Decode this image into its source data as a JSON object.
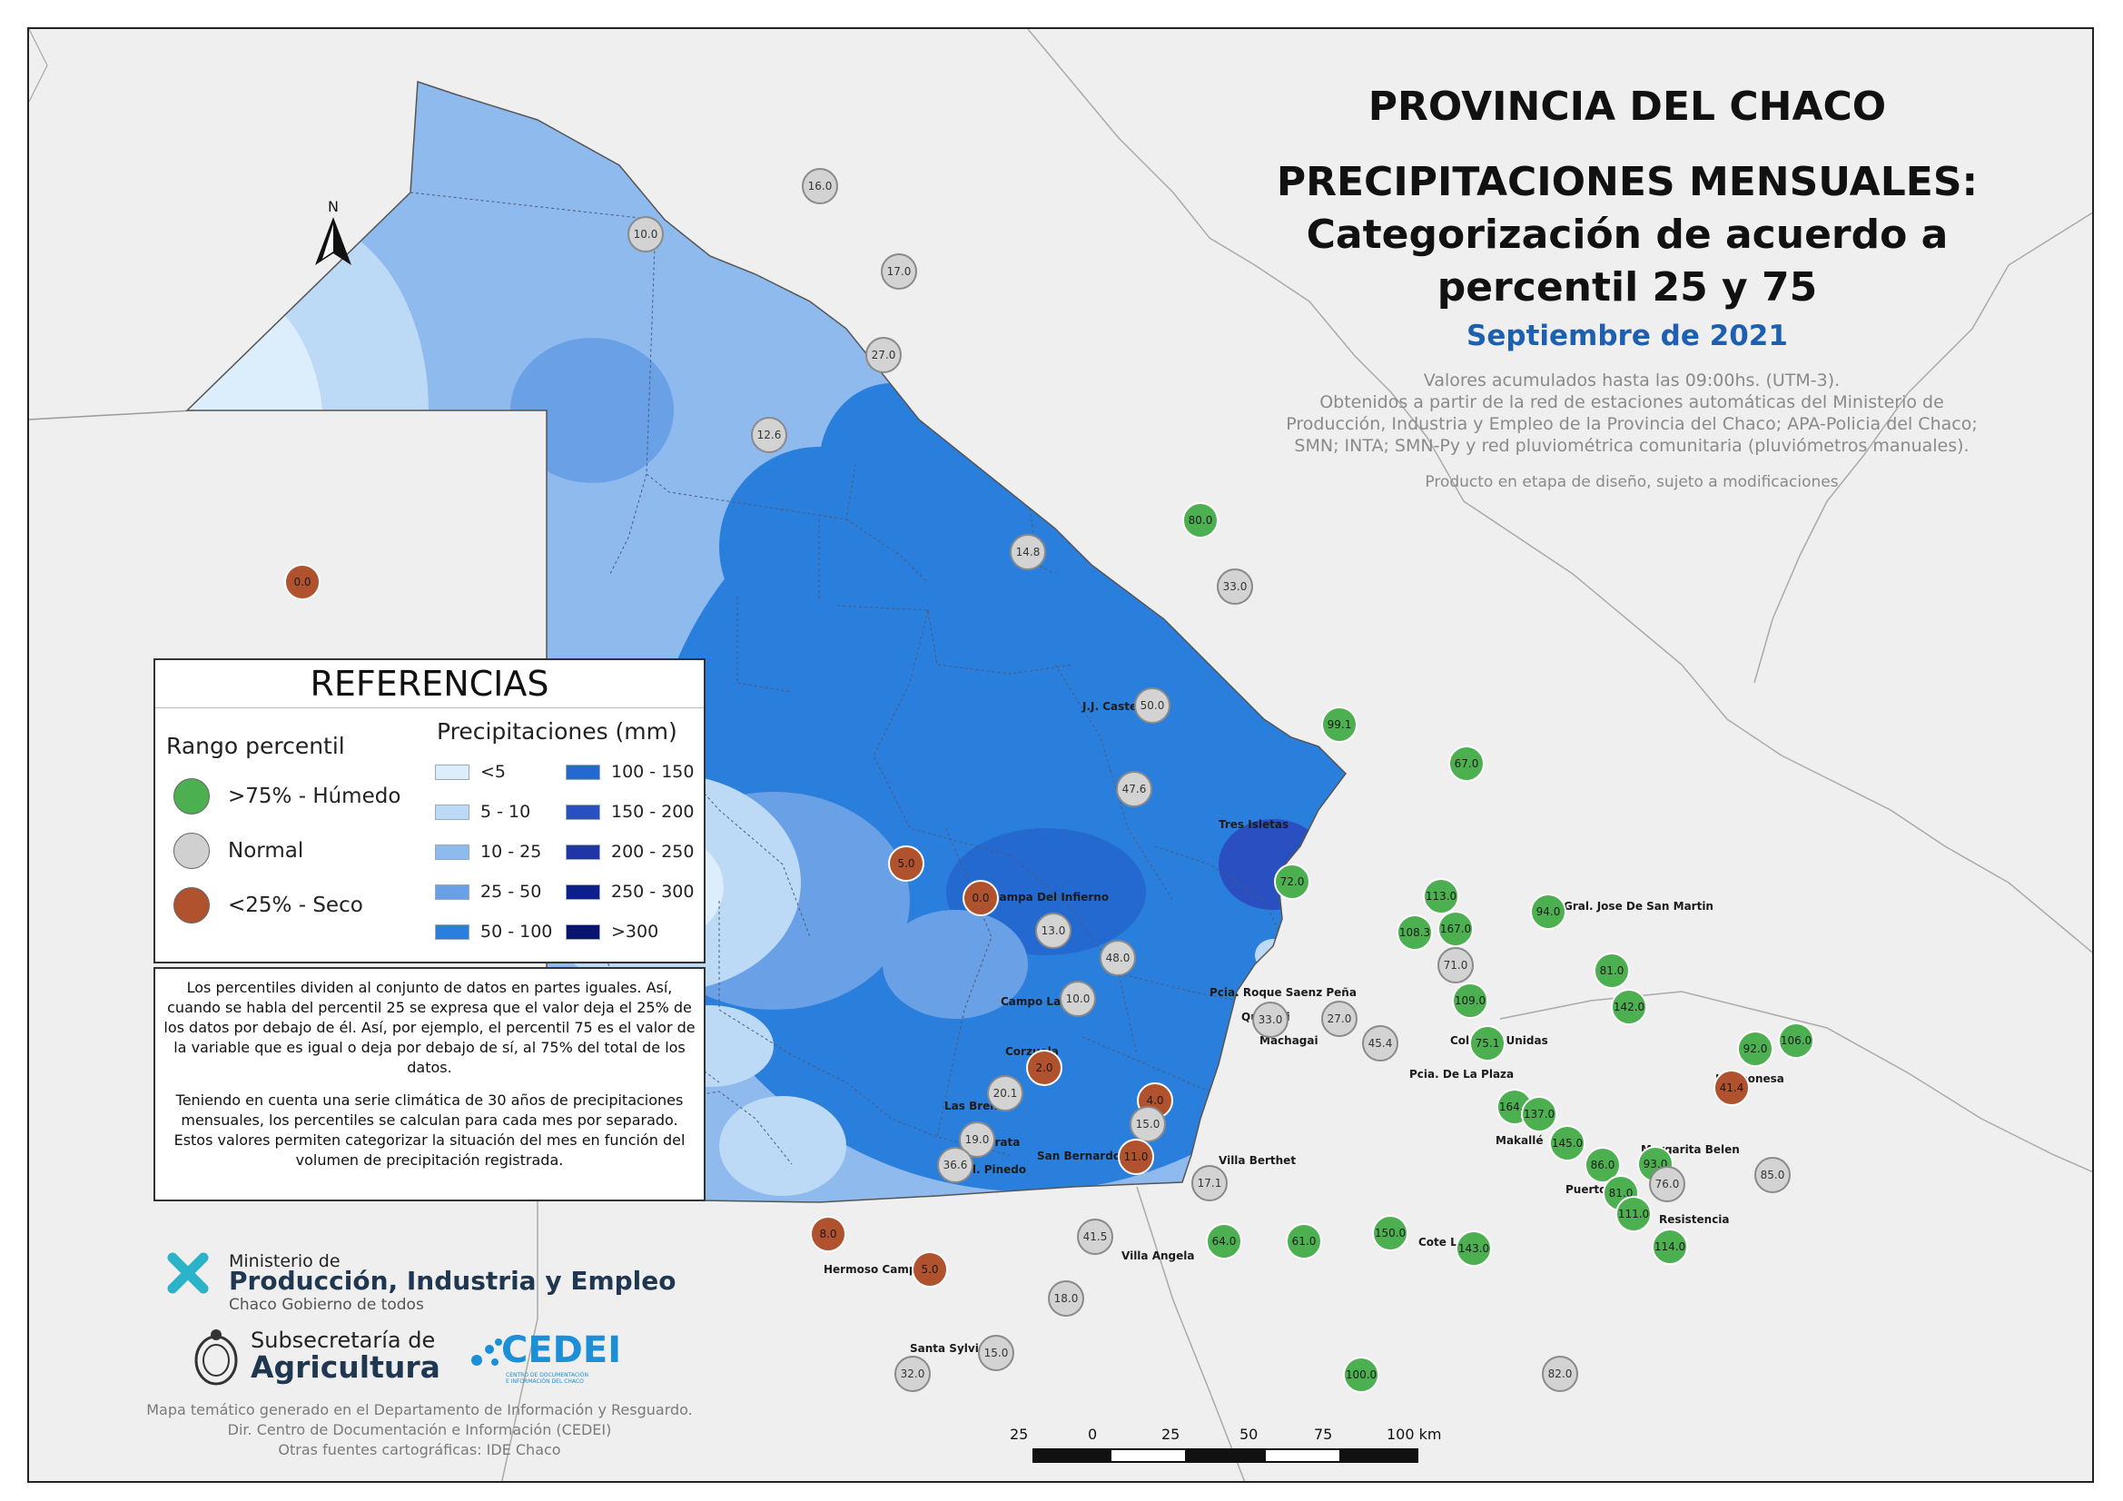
{
  "title": {
    "line1": "PROVINCIA DEL CHACO",
    "line2": "PRECIPITACIONES MENSUALES:",
    "line3": "Categorización de acuerdo a",
    "line4": "percentil 25 y 75",
    "period": "Septiembre de 2021"
  },
  "description": {
    "line1": "Valores acumulados hasta las 09:00hs. (UTM-3).",
    "line2": "Obtenidos a partir de la red de estaciones automáticas del Ministerio de",
    "line3": "Producción, Industria y Empleo de la Provincia del Chaco; APA-Policia del Chaco;",
    "line4": "SMN; INTA; SMN-Py y red pluviométrica comunitaria (pluviómetros manuales).",
    "note": "Producto en etapa de diseño, sujeto a modificaciones"
  },
  "north_arrow": {
    "label": "N"
  },
  "legend": {
    "title": "REFERENCIAS",
    "percentile_title": "Rango percentil",
    "categories": [
      {
        "label": ">75% - Húmedo",
        "color": "#4caf50"
      },
      {
        "label": "Normal",
        "color": "#d0d0d0"
      },
      {
        "label": "<25% - Seco",
        "color": "#b0522d"
      }
    ],
    "precip_title": "Precipitaciones (mm)",
    "classes": [
      {
        "label": "<5",
        "color": "#dcedfb"
      },
      {
        "label": "5 - 10",
        "color": "#bcd9f6"
      },
      {
        "label": "10 - 25",
        "color": "#8fbaed"
      },
      {
        "label": "25 - 50",
        "color": "#6aa0e6"
      },
      {
        "label": "50 - 100",
        "color": "#2b7fdc"
      },
      {
        "label": "100 - 150",
        "color": "#2369cf"
      },
      {
        "label": "150 - 200",
        "color": "#2a4fc0"
      },
      {
        "label": "200 - 250",
        "color": "#1f35a8"
      },
      {
        "label": "250 - 300",
        "color": "#0d1f8a"
      },
      {
        "label": ">300",
        "color": "#081470"
      }
    ]
  },
  "explanation": {
    "p1": "Los percentiles dividen al conjunto de datos en partes iguales. Así, cuando se habla del percentil 25 se expresa que el valor deja el 25% de los datos por debajo de él. Así, por ejemplo, el percentil 75 es el valor de la variable que es igual o deja por debajo de sí, al 75% del total de los datos.",
    "p2": "Teniendo en cuenta una serie climática de 30 años de precipitaciones mensuales, los percentiles se calculan para cada mes por separado. Estos valores permiten categorizar la situación del mes en función del volumen de precipitación registrada."
  },
  "logos": {
    "ministerio": "Ministerio de",
    "produccion": "Producción, Industria y Empleo",
    "gobierno": "Chaco Gobierno de todos",
    "subsecretaria": "Subsecretaría de",
    "agricultura": "Agricultura",
    "cedei": "CEDEI",
    "cedei_sub1": "CENTRO DE DOCUMENTACIÓN",
    "cedei_sub2": "E INFORMACIÓN DEL CHACO"
  },
  "footer": {
    "line1": "Mapa temático generado en el Departamento de Información y Resguardo.",
    "line2": "Dir. Centro de Documentación e Información (CEDEI)",
    "line3": "Otras fuentes cartográficas: IDE Chaco"
  },
  "scale": {
    "labels": [
      "25",
      "0",
      "25",
      "50",
      "75",
      "100 km"
    ]
  },
  "places": [
    "J.J. Castelli",
    "Tres Isletas",
    "Pampa Del Infierno",
    "Gral. Jose De San Martin",
    "Pcia. Roque Saenz Peña",
    "Quitilipi",
    "Machagai",
    "Campo Largo",
    "Corzuela",
    "Pcia. De La Plaza",
    "Colonias Unidas",
    "La Leonesa",
    "Las Breñas",
    "Charata",
    "Gral. Pinedo",
    "San Bernardo",
    "Villa Berthet",
    "Margarita Belen",
    "Puerto Tirol",
    "Resistencia",
    "Cote Lai",
    "Villa Angela",
    "Hermoso Campo",
    "Santa Sylvina",
    "Makallé"
  ],
  "stations": [
    {
      "v": "16.0",
      "c": "n"
    },
    {
      "v": "10.0",
      "c": "n"
    },
    {
      "v": "17.0",
      "c": "n"
    },
    {
      "v": "27.0",
      "c": "n"
    },
    {
      "v": "12.6",
      "c": "n"
    },
    {
      "v": "80.0",
      "c": "h"
    },
    {
      "v": "14.8",
      "c": "n"
    },
    {
      "v": "33.0",
      "c": "n"
    },
    {
      "v": "0.0",
      "c": "s"
    },
    {
      "v": "50.0",
      "c": "n"
    },
    {
      "v": "99.1",
      "c": "h"
    },
    {
      "v": "67.0",
      "c": "h"
    },
    {
      "v": "47.6",
      "c": "n"
    },
    {
      "v": "5.0",
      "c": "s"
    },
    {
      "v": "0.0",
      "c": "s"
    },
    {
      "v": "72.0",
      "c": "h"
    },
    {
      "v": "113.0",
      "c": "h"
    },
    {
      "v": "94.0",
      "c": "h"
    },
    {
      "v": "108.3",
      "c": "h"
    },
    {
      "v": "167.0",
      "c": "h"
    },
    {
      "v": "13.0",
      "c": "n"
    },
    {
      "v": "48.0",
      "c": "n"
    },
    {
      "v": "71.0",
      "c": "n"
    },
    {
      "v": "81.0",
      "c": "h"
    },
    {
      "v": "10.0",
      "c": "n"
    },
    {
      "v": "109.0",
      "c": "h"
    },
    {
      "v": "142.0",
      "c": "h"
    },
    {
      "v": "33.0",
      "c": "n"
    },
    {
      "v": "27.0",
      "c": "n"
    },
    {
      "v": "45.4",
      "c": "n"
    },
    {
      "v": "75.1",
      "c": "h"
    },
    {
      "v": "92.0",
      "c": "h"
    },
    {
      "v": "106.0",
      "c": "h"
    },
    {
      "v": "2.0",
      "c": "s"
    },
    {
      "v": "41.4",
      "c": "s"
    },
    {
      "v": "20.1",
      "c": "n"
    },
    {
      "v": "4.0",
      "c": "s"
    },
    {
      "v": "164.0",
      "c": "h"
    },
    {
      "v": "137.0",
      "c": "h"
    },
    {
      "v": "15.0",
      "c": "n"
    },
    {
      "v": "19.0",
      "c": "n"
    },
    {
      "v": "145.0",
      "c": "h"
    },
    {
      "v": "11.0",
      "c": "s"
    },
    {
      "v": "36.6",
      "c": "n"
    },
    {
      "v": "86.0",
      "c": "h"
    },
    {
      "v": "93.0",
      "c": "h"
    },
    {
      "v": "85.0",
      "c": "n"
    },
    {
      "v": "17.1",
      "c": "n"
    },
    {
      "v": "81.0",
      "c": "h"
    },
    {
      "v": "76.0",
      "c": "n"
    },
    {
      "v": "111.0",
      "c": "h"
    },
    {
      "v": "8.0",
      "c": "s"
    },
    {
      "v": "41.5",
      "c": "n"
    },
    {
      "v": "64.0",
      "c": "h"
    },
    {
      "v": "61.0",
      "c": "h"
    },
    {
      "v": "150.0",
      "c": "h"
    },
    {
      "v": "143.0",
      "c": "h"
    },
    {
      "v": "114.0",
      "c": "h"
    },
    {
      "v": "5.0",
      "c": "s"
    },
    {
      "v": "18.0",
      "c": "n"
    },
    {
      "v": "15.0",
      "c": "n"
    },
    {
      "v": "32.0",
      "c": "n"
    },
    {
      "v": "100.0",
      "c": "h"
    },
    {
      "v": "82.0",
      "c": "n"
    }
  ]
}
